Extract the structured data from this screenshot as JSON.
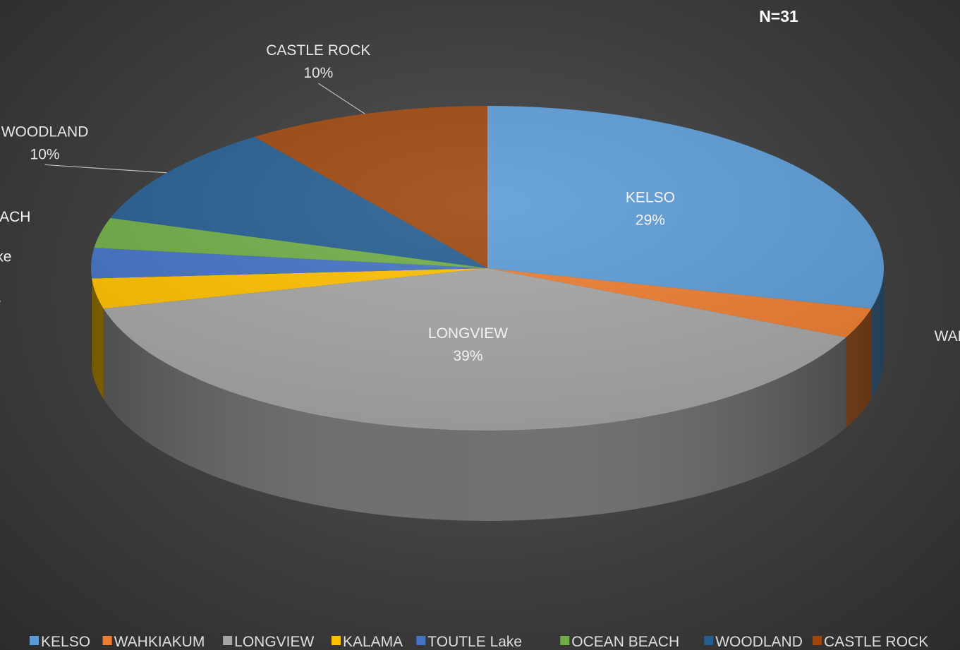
{
  "chart_data": {
    "type": "pie",
    "style": "3d",
    "note": "N=31",
    "slices": [
      {
        "name": "KELSO",
        "value": 29,
        "label": "29%",
        "color": "#5b9bd5"
      },
      {
        "name": "WAHKIAKUM",
        "value": 3,
        "label": "3%",
        "color": "#ed7d31"
      },
      {
        "name": "LONGVIEW",
        "value": 39,
        "label": "39%",
        "color": "#a5a5a5"
      },
      {
        "name": "KALAMA",
        "value": 3,
        "label": "3%",
        "color": "#ffc000"
      },
      {
        "name": "TOUTLE Lake",
        "value": 3,
        "label": "3%",
        "color": "#4472c4"
      },
      {
        "name": "OCEAN BEACH",
        "value": 3,
        "label": "3%",
        "color": "#70ad47"
      },
      {
        "name": "WOODLAND",
        "value": 10,
        "label": "10%",
        "color": "#255e91"
      },
      {
        "name": "CASTLE ROCK",
        "value": 10,
        "label": "10%",
        "color": "#9e480e"
      }
    ],
    "legend_position": "bottom"
  }
}
